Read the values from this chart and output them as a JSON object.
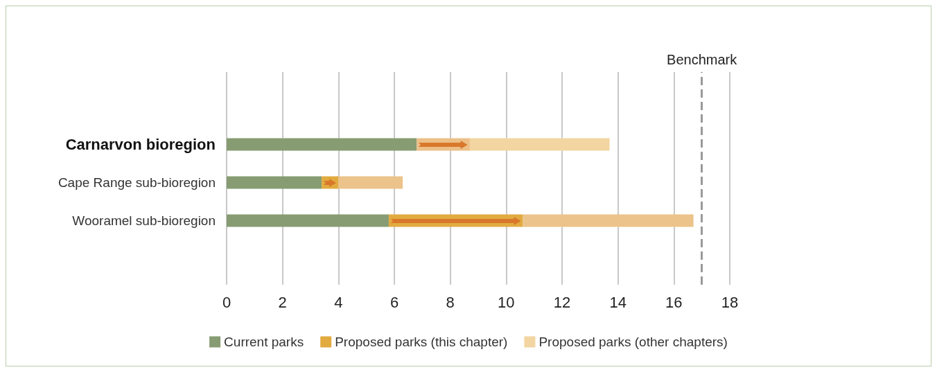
{
  "chart_data": {
    "type": "bar",
    "orientation": "horizontal",
    "stacked": true,
    "categories": [
      "Carnarvon bioregion",
      "Cape Range sub-bioregion",
      "Wooramel sub-bioregion"
    ],
    "series": [
      {
        "name": "Current parks",
        "color": "#879c72",
        "values": [
          6.8,
          3.4,
          5.8
        ]
      },
      {
        "name": "Proposed parks (this chapter)",
        "color": "#e2ab40",
        "colors": [
          "#ecc088",
          "#e2ab40",
          "#e2ab40"
        ],
        "values": [
          1.9,
          0.6,
          4.8
        ]
      },
      {
        "name": "Proposed parks (other chapters)",
        "color": "#f2d5a1",
        "colors": [
          "#f2d5a1",
          "#ecc38a",
          "#ecc38a"
        ],
        "values": [
          5.0,
          2.3,
          6.1
        ]
      }
    ],
    "xlim": [
      0,
      18
    ],
    "xticks": [
      0,
      2,
      4,
      6,
      8,
      10,
      12,
      14,
      16,
      18
    ],
    "grid": "x",
    "legend": "bottom",
    "ref_lines": [
      {
        "axis": "x",
        "value": 17,
        "label": "Benchmark",
        "color": "#999999",
        "line_style": "dashed"
      }
    ]
  }
}
